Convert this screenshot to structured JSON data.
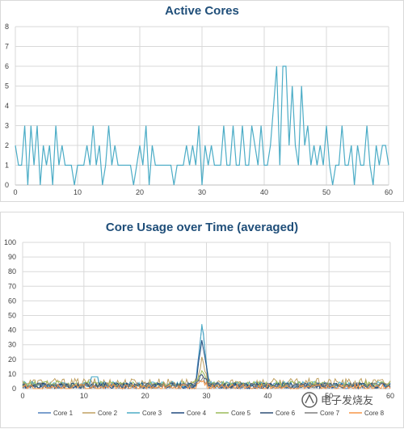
{
  "chart_data": [
    {
      "type": "line",
      "title": "Active Cores",
      "xlim": [
        0,
        60
      ],
      "ylim": [
        0,
        8
      ],
      "x_ticks": [
        0,
        10,
        20,
        30,
        40,
        50,
        60
      ],
      "y_ticks": [
        0,
        1,
        2,
        3,
        4,
        5,
        6,
        7,
        8
      ],
      "grid": true,
      "color": "#4bacc6",
      "series": [
        {
          "x": [
            0,
            0.5,
            1,
            1.5,
            2,
            2.5,
            3,
            3.5,
            4,
            4.5,
            5,
            5.5,
            6,
            6.5,
            7,
            7.5,
            8,
            8.5,
            9,
            9.5,
            10,
            10.5,
            11,
            11.5,
            12,
            12.5,
            13,
            13.5,
            14,
            14.5,
            15,
            15.5,
            16,
            16.5,
            17,
            17.5,
            18,
            18.5,
            19,
            19.5,
            20,
            20.5,
            21,
            21.5,
            22,
            22.5,
            23,
            23.5,
            24,
            24.5,
            25,
            25.5,
            26,
            26.5,
            27,
            27.5,
            28,
            28.5,
            29,
            29.5,
            30,
            30.5,
            31,
            31.5,
            32,
            32.5,
            33,
            33.5,
            34,
            34.5,
            35,
            35.5,
            36,
            36.5,
            37,
            37.5,
            38,
            38.5,
            39,
            39.5,
            40,
            40.5,
            41,
            41.5,
            42,
            42.5,
            43,
            43.5,
            44,
            44.5,
            45,
            45.5,
            46,
            46.5,
            47,
            47.5,
            48,
            48.5,
            49,
            49.5,
            50,
            50.5,
            51,
            51.5,
            52,
            52.5,
            53,
            53.5,
            54,
            54.5,
            55,
            55.5,
            56,
            56.5,
            57,
            57.5,
            58,
            58.5,
            59,
            59.5,
            60
          ],
          "values": [
            2,
            1,
            1,
            3,
            0,
            3,
            1,
            3,
            0,
            2,
            1,
            2,
            0,
            3,
            1,
            2,
            1,
            1,
            1,
            0,
            1,
            1,
            1,
            2,
            1,
            3,
            1,
            2,
            0,
            1,
            3,
            1,
            2,
            1,
            1,
            1,
            1,
            1,
            0,
            1,
            2,
            1,
            3,
            0,
            2,
            1,
            1,
            1,
            1,
            1,
            1,
            0,
            1,
            1,
            1,
            2,
            1,
            2,
            1,
            3,
            0,
            2,
            1,
            2,
            1,
            1,
            1,
            3,
            1,
            1,
            3,
            1,
            1,
            3,
            1,
            1,
            3,
            2,
            1,
            3,
            1,
            1,
            2,
            4,
            6,
            1,
            6,
            6,
            2,
            5,
            2,
            1,
            5,
            2,
            3,
            1,
            2,
            1,
            2,
            1,
            3,
            1,
            0,
            1,
            1,
            3,
            1,
            1,
            2,
            0,
            2,
            1,
            1,
            3,
            1,
            0,
            2,
            1,
            2,
            2,
            1
          ]
        }
      ]
    },
    {
      "type": "line",
      "title": "Core Usage over Time (averaged)",
      "xlim": [
        0,
        60
      ],
      "ylim": [
        0,
        100
      ],
      "x_ticks": [
        0,
        10,
        20,
        30,
        40,
        50,
        60
      ],
      "y_ticks": [
        0,
        10,
        20,
        30,
        40,
        50,
        60,
        70,
        80,
        90,
        100
      ],
      "grid": true,
      "legend": "bottom",
      "series": [
        {
          "name": "Core 1",
          "color": "#4f81bd",
          "base": 2,
          "peak": 49,
          "noise": 2
        },
        {
          "name": "Core 2",
          "color": "#c0a060",
          "base": 4,
          "peak": 20,
          "noise": 3
        },
        {
          "name": "Core 3",
          "color": "#4bacc6",
          "base": 3,
          "peak": 45,
          "noise": 2
        },
        {
          "name": "Core 4",
          "color": "#1f497d",
          "base": 2,
          "peak": 38,
          "noise": 2
        },
        {
          "name": "Core 5",
          "color": "#9bbb59",
          "base": 3,
          "peak": 15,
          "noise": 2
        },
        {
          "name": "Core 6",
          "color": "#2c4d75",
          "base": 2,
          "peak": 12,
          "noise": 2
        },
        {
          "name": "Core 7",
          "color": "#7f7f7f",
          "base": 2,
          "peak": 8,
          "noise": 2
        },
        {
          "name": "Core 8",
          "color": "#f79646",
          "base": 1,
          "peak": 6,
          "noise": 2
        }
      ]
    }
  ],
  "watermark": {
    "text": "电子发烧友"
  }
}
